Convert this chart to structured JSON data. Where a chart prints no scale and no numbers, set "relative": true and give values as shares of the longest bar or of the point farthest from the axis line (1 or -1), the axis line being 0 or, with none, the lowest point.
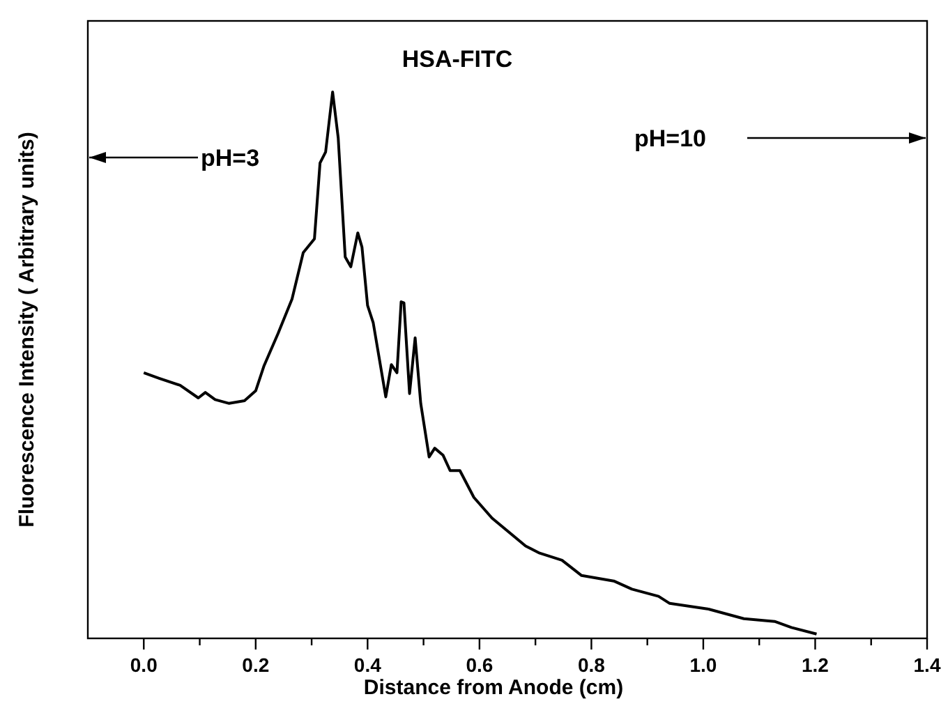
{
  "chart_data": {
    "type": "line",
    "title": "HSA-FITC",
    "xlabel": "Distance from Anode (cm)",
    "ylabel": "Fluorescence Intensity ( Arbitrary units)",
    "relative": true,
    "xlim": [
      -0.1,
      1.4
    ],
    "xticks": [
      {
        "value": 0,
        "label": "0.0"
      },
      {
        "value": 0.1,
        "label": null
      },
      {
        "value": 0.2,
        "label": "0.2"
      },
      {
        "value": 0.3,
        "label": null
      },
      {
        "value": 0.4,
        "label": "0.4"
      },
      {
        "value": 0.5,
        "label": null
      },
      {
        "value": 0.6,
        "label": "0.6"
      },
      {
        "value": 0.7,
        "label": null
      },
      {
        "value": 0.8,
        "label": "0.8"
      },
      {
        "value": 0.9,
        "label": null
      },
      {
        "value": 1,
        "label": "1.0"
      },
      {
        "value": 1.1,
        "label": null
      },
      {
        "value": 1.2,
        "label": "1.2"
      },
      {
        "value": 1.3,
        "label": null
      },
      {
        "value": 1.4,
        "label": "1.4"
      }
    ],
    "annotations": [
      "pH=3",
      "pH=10"
    ],
    "grid": false,
    "line_style": "solid",
    "series": [
      {
        "color": "#000000",
        "x": [
          0,
          0.0275,
          0.065,
          0.0975,
          0.11,
          0.1275,
          0.1525,
          0.18,
          0.2,
          0.215,
          0.24,
          0.265,
          0.285,
          0.305,
          0.315,
          0.325,
          0.3375,
          0.3475,
          0.36,
          0.37,
          0.3825,
          0.39,
          0.4,
          0.41,
          0.4325,
          0.4425,
          0.4525,
          0.46,
          0.465,
          0.475,
          0.485,
          0.495,
          0.51,
          0.52,
          0.535,
          0.5475,
          0.565,
          0.59,
          0.6225,
          0.6825,
          0.7075,
          0.7475,
          0.7825,
          0.84,
          0.8725,
          0.92,
          0.94,
          1.0075,
          1.0725,
          1.1275,
          1.1575,
          1.2025
        ],
        "values": [
          0.486,
          0.476,
          0.463,
          0.44,
          0.45,
          0.437,
          0.43,
          0.435,
          0.453,
          0.499,
          0.558,
          0.621,
          0.706,
          0.731,
          0.87,
          0.89,
          1,
          0.916,
          0.698,
          0.68,
          0.742,
          0.716,
          0.609,
          0.578,
          0.442,
          0.501,
          0.486,
          0.616,
          0.614,
          0.448,
          0.55,
          0.43,
          0.332,
          0.348,
          0.335,
          0.307,
          0.307,
          0.258,
          0.22,
          0.169,
          0.156,
          0.143,
          0.115,
          0.105,
          0.09,
          0.077,
          0.064,
          0.054,
          0.036,
          0.031,
          0.02,
          0.008
        ]
      }
    ]
  }
}
